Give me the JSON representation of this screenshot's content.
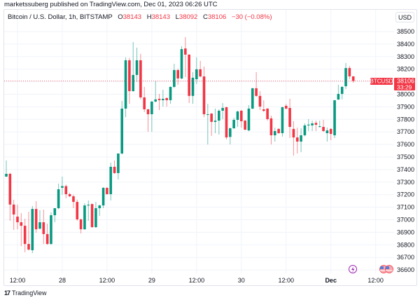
{
  "publication": "marketssuberg published on TradingView.com, Dec 01, 2023 06:26 UTC",
  "legend": {
    "symbol": "Bitcoin / U.S. Dollar, 1h, BITSTAMP",
    "o_label": "O",
    "o": "38143",
    "h_label": "H",
    "h": "38143",
    "l_label": "L",
    "l": "38092",
    "c_label": "C",
    "c": "38106",
    "change": "−30 (−0.08%)"
  },
  "currency_button": "USD",
  "price_tag": {
    "symbol": "BTCUSD",
    "price": "38106",
    "countdown": "33:29",
    "color": "#f23645"
  },
  "brand": "TradingView",
  "icons": [
    "lightning-event-icon",
    "us-flag-event-icon",
    "tradingview-logo-icon"
  ],
  "chart_data": {
    "type": "candlestick",
    "interval": "1h",
    "colors": {
      "up": "#089981",
      "down": "#f23645"
    },
    "grid": true,
    "ylim": [
      36600,
      38500
    ],
    "y_ticks": [
      "38500",
      "38400",
      "38300",
      "38200",
      "38100",
      "38000",
      "37900",
      "37800",
      "37700",
      "37600",
      "37500",
      "37400",
      "37300",
      "37200",
      "37100",
      "37000",
      "36900",
      "36800",
      "36700",
      "36600"
    ],
    "x_ticks": [
      {
        "label": "12:00",
        "time": "2023-11-27T12:00",
        "bold": false
      },
      {
        "label": "28",
        "time": "2023-11-28T00:00",
        "bold": false
      },
      {
        "label": "12:00",
        "time": "2023-11-28T12:00",
        "bold": false
      },
      {
        "label": "29",
        "time": "2023-11-29T00:00",
        "bold": false
      },
      {
        "label": "12:00",
        "time": "2023-11-29T12:00",
        "bold": false
      },
      {
        "label": "30",
        "time": "2023-11-30T00:00",
        "bold": false
      },
      {
        "label": "12:00",
        "time": "2023-11-30T12:00",
        "bold": false
      },
      {
        "label": "Dec",
        "time": "2023-12-01T00:00",
        "bold": true
      },
      {
        "label": "12:00",
        "time": "2023-12-01T12:00",
        "bold": false
      }
    ],
    "columns": [
      "time",
      "open",
      "high",
      "low",
      "close"
    ],
    "candles": [
      [
        "2023-11-27T09:00",
        37344,
        37473,
        37340,
        37366
      ],
      [
        "2023-11-27T10:00",
        37366,
        37375,
        36992,
        37121
      ],
      [
        "2023-11-27T11:00",
        37121,
        37159,
        36919,
        37042
      ],
      [
        "2023-11-27T12:00",
        37025,
        37121,
        36924,
        36980
      ],
      [
        "2023-11-27T13:00",
        36980,
        37053,
        36790,
        36952
      ],
      [
        "2023-11-27T14:00",
        36952,
        37008,
        36741,
        36807
      ],
      [
        "2023-11-27T15:00",
        36807,
        37064,
        36755,
        36762
      ],
      [
        "2023-11-27T16:00",
        36757,
        37109,
        36734,
        37086
      ],
      [
        "2023-11-27T17:00",
        37086,
        37148,
        36896,
        36924
      ],
      [
        "2023-11-27T18:00",
        36929,
        37076,
        36924,
        36980
      ],
      [
        "2023-11-27T19:00",
        36980,
        37081,
        36807,
        36886
      ],
      [
        "2023-11-27T20:00",
        36886,
        36969,
        36800,
        36807
      ],
      [
        "2023-11-27T21:00",
        36807,
        37058,
        36800,
        37036
      ],
      [
        "2023-11-27T22:00",
        37036,
        37092,
        36980,
        37092
      ],
      [
        "2023-11-27T23:00",
        37092,
        37288,
        37085,
        37243
      ],
      [
        "2023-11-28T00:00",
        37255,
        37344,
        37199,
        37268
      ],
      [
        "2023-11-28T01:00",
        37268,
        37280,
        37171,
        37204
      ],
      [
        "2023-11-28T02:00",
        37204,
        37215,
        37180,
        37187
      ],
      [
        "2023-11-28T03:00",
        37187,
        37200,
        37092,
        37142
      ],
      [
        "2023-11-28T04:00",
        37142,
        37160,
        36992,
        37003
      ],
      [
        "2023-11-28T05:00",
        37003,
        37010,
        36891,
        36924
      ],
      [
        "2023-11-28T06:00",
        36924,
        37131,
        36920,
        37114
      ],
      [
        "2023-11-28T07:00",
        37114,
        37154,
        36992,
        37120
      ],
      [
        "2023-11-28T08:00",
        37125,
        37130,
        36935,
        36941
      ],
      [
        "2023-11-28T09:00",
        36941,
        37142,
        36935,
        37092
      ],
      [
        "2023-11-28T10:00",
        37092,
        37120,
        37030,
        37114
      ],
      [
        "2023-11-28T11:00",
        37114,
        37260,
        37092,
        37254
      ],
      [
        "2023-11-28T12:00",
        37254,
        37260,
        37200,
        37204
      ],
      [
        "2023-11-28T13:00",
        37204,
        37455,
        37154,
        37422
      ],
      [
        "2023-11-28T14:00",
        37422,
        37473,
        37365,
        37372
      ],
      [
        "2023-11-28T15:00",
        37372,
        37528,
        37321,
        37528
      ],
      [
        "2023-11-28T16:00",
        37528,
        37947,
        37520,
        37886
      ],
      [
        "2023-11-28T17:00",
        37886,
        38294,
        37818,
        38271
      ],
      [
        "2023-11-28T18:00",
        38271,
        38290,
        37924,
        38025
      ],
      [
        "2023-11-28T19:00",
        38025,
        38416,
        38020,
        38154
      ],
      [
        "2023-11-28T20:00",
        38154,
        38372,
        38098,
        38271
      ],
      [
        "2023-11-28T21:00",
        38271,
        38322,
        37959,
        37975
      ],
      [
        "2023-11-28T22:00",
        37975,
        38059,
        37858,
        37880
      ],
      [
        "2023-11-28T23:00",
        37880,
        37885,
        37701,
        37841
      ],
      [
        "2023-11-29T00:00",
        37841,
        37945,
        37701,
        37942
      ],
      [
        "2023-11-29T01:00",
        37942,
        38104,
        37935,
        37959
      ],
      [
        "2023-11-29T02:00",
        37964,
        38003,
        37874,
        37953
      ],
      [
        "2023-11-29T03:00",
        37953,
        38036,
        37902,
        37964
      ],
      [
        "2023-11-29T04:00",
        37970,
        37975,
        37902,
        37953
      ],
      [
        "2023-11-29T05:00",
        37953,
        38062,
        37924,
        38059
      ],
      [
        "2023-11-29T06:00",
        38059,
        38243,
        38050,
        38193
      ],
      [
        "2023-11-29T07:00",
        38193,
        38205,
        38076,
        38126
      ],
      [
        "2023-11-29T08:00",
        38126,
        38383,
        38120,
        38360
      ],
      [
        "2023-11-29T09:00",
        38365,
        38456,
        38137,
        38316
      ],
      [
        "2023-11-29T10:00",
        38316,
        38320,
        37930,
        37987
      ],
      [
        "2023-11-29T11:00",
        37987,
        38177,
        37924,
        38132
      ],
      [
        "2023-11-29T12:00",
        38120,
        38294,
        38081,
        38199
      ],
      [
        "2023-11-29T13:00",
        38199,
        38266,
        38135,
        38142
      ],
      [
        "2023-11-29T14:00",
        38142,
        38221,
        37818,
        37841
      ],
      [
        "2023-11-29T15:00",
        37836,
        37924,
        37600,
        37841
      ],
      [
        "2023-11-29T16:00",
        37846,
        37850,
        37668,
        37780
      ],
      [
        "2023-11-29T17:00",
        37780,
        37886,
        37690,
        37790
      ],
      [
        "2023-11-29T18:00",
        37790,
        37880,
        37679,
        37869
      ],
      [
        "2023-11-29T19:00",
        37869,
        37930,
        37802,
        37891
      ],
      [
        "2023-11-29T20:00",
        37897,
        37900,
        37640,
        37656
      ],
      [
        "2023-11-29T21:00",
        37660,
        37735,
        37600,
        37729
      ],
      [
        "2023-11-29T22:00",
        37729,
        37813,
        37725,
        37796
      ],
      [
        "2023-11-29T23:00",
        37796,
        37870,
        37740,
        37863
      ],
      [
        "2023-11-30T00:00",
        37869,
        37875,
        37734,
        37785
      ],
      [
        "2023-11-30T01:00",
        37790,
        37795,
        37712,
        37718
      ],
      [
        "2023-11-30T02:00",
        37712,
        37914,
        37705,
        37886
      ],
      [
        "2023-11-30T03:00",
        37886,
        38050,
        37880,
        38048
      ],
      [
        "2023-11-30T04:00",
        38048,
        38177,
        37980,
        37987
      ],
      [
        "2023-11-30T05:00",
        37987,
        38025,
        37874,
        37902
      ],
      [
        "2023-11-30T06:00",
        37880,
        37952,
        37858,
        37868
      ],
      [
        "2023-11-30T07:00",
        37886,
        37890,
        37790,
        37802
      ],
      [
        "2023-11-30T08:00",
        37808,
        37830,
        37600,
        37673
      ],
      [
        "2023-11-30T09:00",
        37673,
        37734,
        37623,
        37707
      ],
      [
        "2023-11-30T10:00",
        37724,
        37730,
        37685,
        37690
      ],
      [
        "2023-11-30T11:00",
        37690,
        37900,
        37663,
        37897
      ],
      [
        "2023-11-30T12:00",
        37908,
        37924,
        37880,
        37886
      ],
      [
        "2023-11-30T13:00",
        37891,
        37964,
        37651,
        37740
      ],
      [
        "2023-11-30T14:00",
        37724,
        37785,
        37511,
        37656
      ],
      [
        "2023-11-30T15:00",
        37656,
        37734,
        37528,
        37623
      ],
      [
        "2023-11-30T16:00",
        37623,
        37729,
        37539,
        37673
      ],
      [
        "2023-11-30T17:00",
        37673,
        37768,
        37665,
        37752
      ],
      [
        "2023-11-30T18:00",
        37752,
        37802,
        37707,
        37758
      ],
      [
        "2023-11-30T19:00",
        37752,
        37790,
        37707,
        37768
      ],
      [
        "2023-11-30T20:00",
        37772,
        37790,
        37707,
        37757
      ],
      [
        "2023-11-30T21:00",
        37740,
        37790,
        37735,
        37745
      ],
      [
        "2023-11-30T22:00",
        37740,
        37796,
        37700,
        37707
      ],
      [
        "2023-11-30T23:00",
        37690,
        37734,
        37623,
        37712
      ],
      [
        "2023-12-01T00:00",
        37724,
        37730,
        37634,
        37684
      ],
      [
        "2023-12-01T01:00",
        37673,
        37955,
        37651,
        37952
      ],
      [
        "2023-12-01T02:00",
        37958,
        38076,
        37955,
        38003
      ],
      [
        "2023-12-01T03:00",
        38003,
        38065,
        37959,
        38059
      ],
      [
        "2023-12-01T04:00",
        38064,
        38249,
        38042,
        38209
      ],
      [
        "2023-12-01T05:00",
        38209,
        38225,
        38120,
        38143
      ],
      [
        "2023-12-01T06:00",
        38143,
        38143,
        38092,
        38106
      ]
    ]
  }
}
